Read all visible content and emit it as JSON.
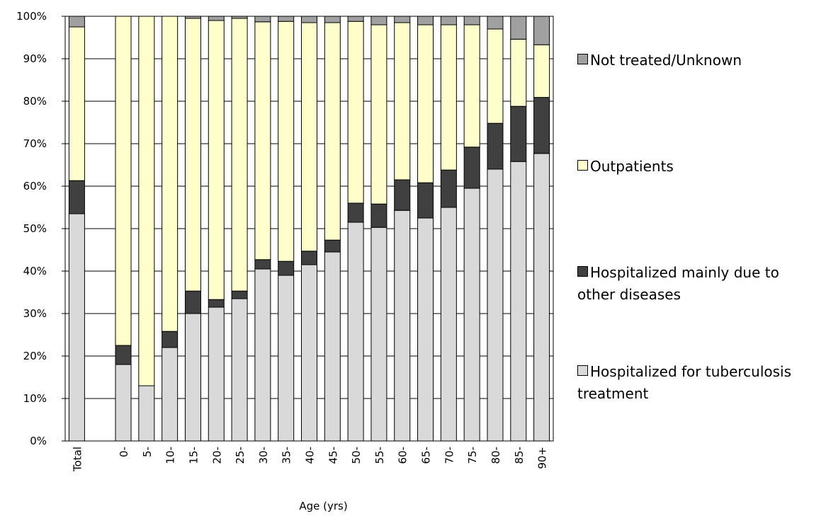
{
  "chart_data": {
    "type": "stacked-bar",
    "x_label": "Age (yrs)",
    "categories": [
      "Total",
      null,
      "0-",
      "5-",
      "10-",
      "15-",
      "20-",
      "25-",
      "30-",
      "35-",
      "40-",
      "45-",
      "50-",
      "55-",
      "60-",
      "65-",
      "70-",
      "75-",
      "80-",
      "85-",
      "90+"
    ],
    "series": [
      {
        "name": "Hospitalized for tuberculosis treatment",
        "color": "#d9d9d9",
        "values": [
          53.5,
          null,
          18,
          13,
          22,
          30,
          31.5,
          33.5,
          40.5,
          39,
          41.5,
          44.5,
          51.5,
          50.3,
          54.3,
          52.5,
          55,
          59.5,
          64,
          65.8,
          67.7
        ]
      },
      {
        "name": "Hospitalized mainly due to other diseases",
        "color": "#404040",
        "values": [
          7.8,
          null,
          4.5,
          0,
          3.8,
          5.3,
          1.8,
          1.8,
          2.2,
          3.3,
          3.2,
          2.8,
          4.5,
          5.5,
          7.2,
          8.3,
          8.8,
          9.7,
          10.8,
          13,
          13.2
        ]
      },
      {
        "name": "Outpatients",
        "color": "#ffffcc",
        "values": [
          36.2,
          null,
          77.5,
          87,
          74.2,
          64.2,
          65.7,
          64.2,
          56,
          56.5,
          53.8,
          51.2,
          42.8,
          42.2,
          37,
          37.2,
          34.2,
          28.8,
          22.2,
          15.8,
          12.4
        ]
      },
      {
        "name": "Not treated/Unknown",
        "color": "#a0a0a0",
        "values": [
          2.5,
          null,
          0,
          0,
          0,
          0.5,
          1,
          0.5,
          1.3,
          1.2,
          1.5,
          1.5,
          1.2,
          2,
          1.5,
          2,
          2,
          2,
          3,
          5.4,
          6.7
        ]
      }
    ],
    "ylim": [
      0,
      100
    ],
    "yticks": [
      {
        "value": 0,
        "label": "0%"
      },
      {
        "value": 10,
        "label": "10%"
      },
      {
        "value": 20,
        "label": "20%"
      },
      {
        "value": 30,
        "label": "30%"
      },
      {
        "value": 40,
        "label": "40%"
      },
      {
        "value": 50,
        "label": "50%"
      },
      {
        "value": 60,
        "label": "60%"
      },
      {
        "value": 70,
        "label": "70%"
      },
      {
        "value": 80,
        "label": "80%"
      },
      {
        "value": 90,
        "label": "90%"
      },
      {
        "value": 100,
        "label": "100%"
      }
    ],
    "grid": true,
    "legend": "right"
  }
}
